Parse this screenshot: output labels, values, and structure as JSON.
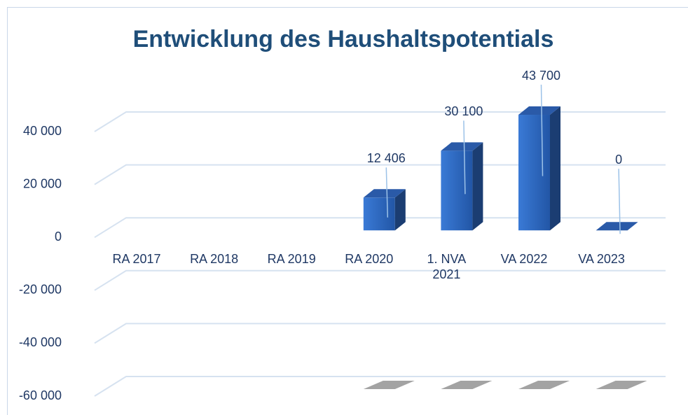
{
  "chart_data": {
    "type": "bar3d",
    "title": "Entwicklung des Haushaltspotentials",
    "categories": [
      "RA 2017",
      "RA 2018",
      "RA 2019",
      "RA 2020",
      "1. NVA 2021",
      "VA 2022",
      "VA 2023"
    ],
    "values": [
      null,
      null,
      null,
      12406,
      30100,
      43700,
      0
    ],
    "value_labels": [
      null,
      null,
      null,
      "12 406",
      "30 100",
      "43 700",
      "0"
    ],
    "color": "#2f6cc4",
    "ylim": [
      -60000,
      40000
    ],
    "yticks": [
      {
        "value": -60000,
        "label": "-60 000"
      },
      {
        "value": -40000,
        "label": "-40 000"
      },
      {
        "value": -20000,
        "label": "-20 000"
      },
      0,
      {
        "value": 20000,
        "label": "20 000"
      },
      {
        "value": 40000,
        "label": "40 000"
      }
    ],
    "grid": true
  }
}
